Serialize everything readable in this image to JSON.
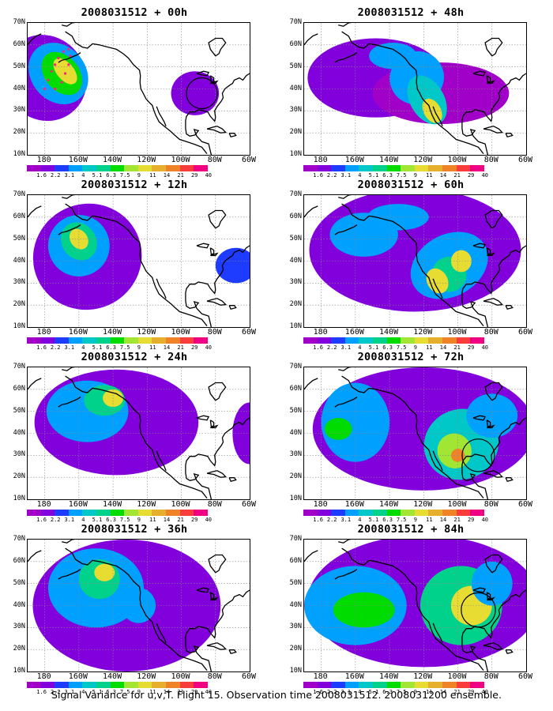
{
  "panels": [
    {
      "title": "2008031512 + 00h"
    },
    {
      "title": "2008031512 + 48h"
    },
    {
      "title": "2008031512 + 12h"
    },
    {
      "title": "2008031512 + 60h"
    },
    {
      "title": "2008031512 + 24h"
    },
    {
      "title": "2008031512 + 72h"
    },
    {
      "title": "2008031512 + 36h"
    },
    {
      "title": "2008031512 + 84h"
    }
  ],
  "lat_labels": [
    "70N",
    "60N",
    "50N",
    "40N",
    "30N",
    "20N",
    "10N"
  ],
  "lon_labels": [
    "180",
    "160W",
    "140W",
    "120W",
    "100W",
    "80W",
    "60W"
  ],
  "colorbar": {
    "labels": [
      "1.6",
      "2.2",
      "3.1",
      "4",
      "5.1",
      "6.3",
      "7.5",
      "9",
      "11",
      "14",
      "21",
      "29",
      "40"
    ],
    "colors": [
      "#a000c8",
      "#8200dc",
      "#1e3cff",
      "#00a0ff",
      "#00c8c8",
      "#00d28c",
      "#00dc00",
      "#a0e632",
      "#e6dc32",
      "#e6af2d",
      "#f08228",
      "#fa3c3c",
      "#f00082"
    ]
  },
  "caption": "Signal Variance for u,v,T. Flight 15. Observation time 2008031512. 2008031200 ensemble."
}
